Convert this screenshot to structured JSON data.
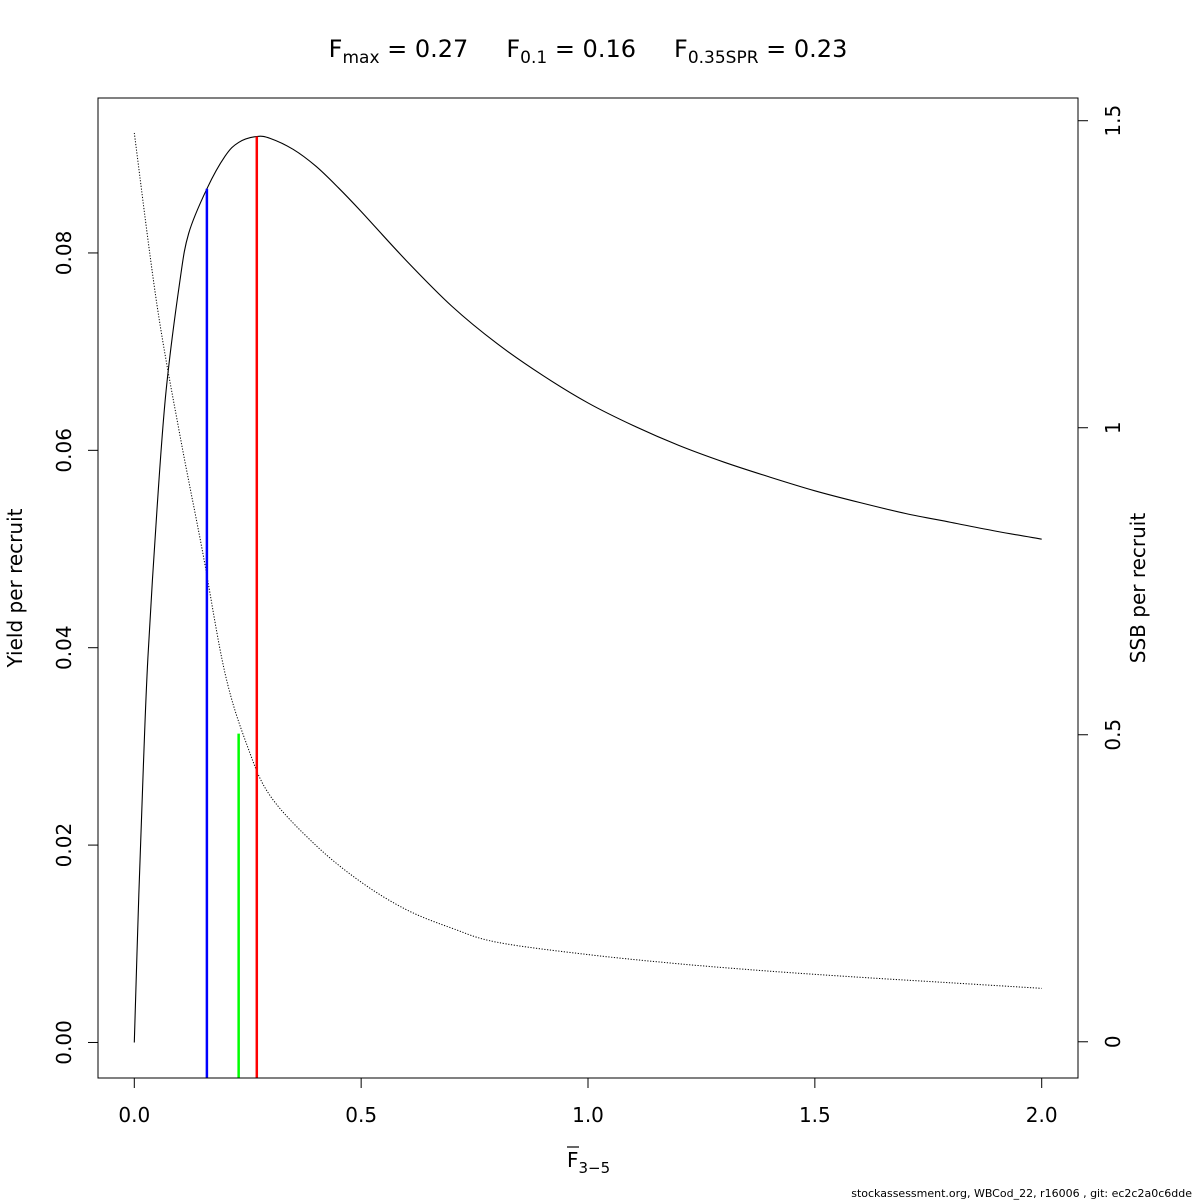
{
  "chart_data": {
    "type": "line",
    "title": {
      "parts": [
        {
          "main": "F",
          "sub": "max",
          "rest": " = 0.27"
        },
        {
          "main": "F",
          "sub": "0.1",
          "rest": " = 0.16"
        },
        {
          "main": "F",
          "sub": "0.35SPR",
          "rest": " = 0.23"
        }
      ]
    },
    "xlabel": {
      "main": "F",
      "sub": "3−5",
      "overbar": true
    },
    "ylabel": "Yield per recruit",
    "y2label": "SSB per recruit",
    "xlim": [
      -0.08,
      2.08
    ],
    "ylim": [
      -0.0036,
      0.0957
    ],
    "y2lim": [
      -0.059,
      1.537
    ],
    "x_ticks": [
      {
        "value": 0.0,
        "label": "0.0"
      },
      {
        "value": 0.5,
        "label": "0.5"
      },
      {
        "value": 1.0,
        "label": "1.0"
      },
      {
        "value": 1.5,
        "label": "1.5"
      },
      {
        "value": 2.0,
        "label": "2.0"
      }
    ],
    "y_ticks": [
      {
        "value": 0.0,
        "label": "0.00"
      },
      {
        "value": 0.02,
        "label": "0.02"
      },
      {
        "value": 0.04,
        "label": "0.04"
      },
      {
        "value": 0.06,
        "label": "0.06"
      },
      {
        "value": 0.08,
        "label": "0.08"
      }
    ],
    "y2_ticks": [
      {
        "value": 0,
        "label": "0"
      },
      {
        "value": 0.5,
        "label": "0.5"
      },
      {
        "value": 1,
        "label": "1"
      },
      {
        "value": 1.5,
        "label": "1.5"
      }
    ],
    "series": [
      {
        "axis": "left",
        "style": "solid",
        "color": "#000000",
        "x": [
          0,
          0.01,
          0.02,
          0.03,
          0.05,
          0.07,
          0.1,
          0.12,
          0.16,
          0.2,
          0.23,
          0.27,
          0.3,
          0.35,
          0.4,
          0.45,
          0.5,
          0.6,
          0.7,
          0.8,
          0.9,
          1.0,
          1.1,
          1.2,
          1.3,
          1.4,
          1.5,
          1.6,
          1.7,
          1.8,
          1.9,
          2.0
        ],
        "y": [
          0.0,
          0.015,
          0.028,
          0.039,
          0.054,
          0.066,
          0.077,
          0.082,
          0.0865,
          0.0898,
          0.0912,
          0.0918,
          0.0916,
          0.0905,
          0.0888,
          0.0866,
          0.0842,
          0.0792,
          0.0746,
          0.0708,
          0.0676,
          0.0648,
          0.0625,
          0.0605,
          0.0588,
          0.0573,
          0.0559,
          0.0547,
          0.0536,
          0.0527,
          0.0518,
          0.051
        ]
      },
      {
        "axis": "right",
        "style": "dotted",
        "color": "#000000",
        "x": [
          0,
          0.05,
          0.1,
          0.15,
          0.2,
          0.25,
          0.3,
          0.4,
          0.5,
          0.6,
          0.7,
          0.8,
          1.0,
          1.2,
          1.4,
          1.6,
          1.8,
          2.0
        ],
        "y": [
          1.48,
          1.2,
          0.99,
          0.8,
          0.6,
          0.48,
          0.4,
          0.32,
          0.26,
          0.215,
          0.185,
          0.162,
          0.142,
          0.127,
          0.115,
          0.105,
          0.096,
          0.087
        ]
      }
    ],
    "reference_lines": [
      {
        "x": 0.16,
        "y_top": 0.0865,
        "color": "#0000ff"
      },
      {
        "x": 0.23,
        "y_top": 0.0313,
        "color": "#00ff00"
      },
      {
        "x": 0.27,
        "y_top": 0.0918,
        "color": "#ff0000"
      }
    ],
    "grid": false
  },
  "footer": "stockassessment.org, WBCod_22, r16006 , git: ec2c2a0c6dde"
}
